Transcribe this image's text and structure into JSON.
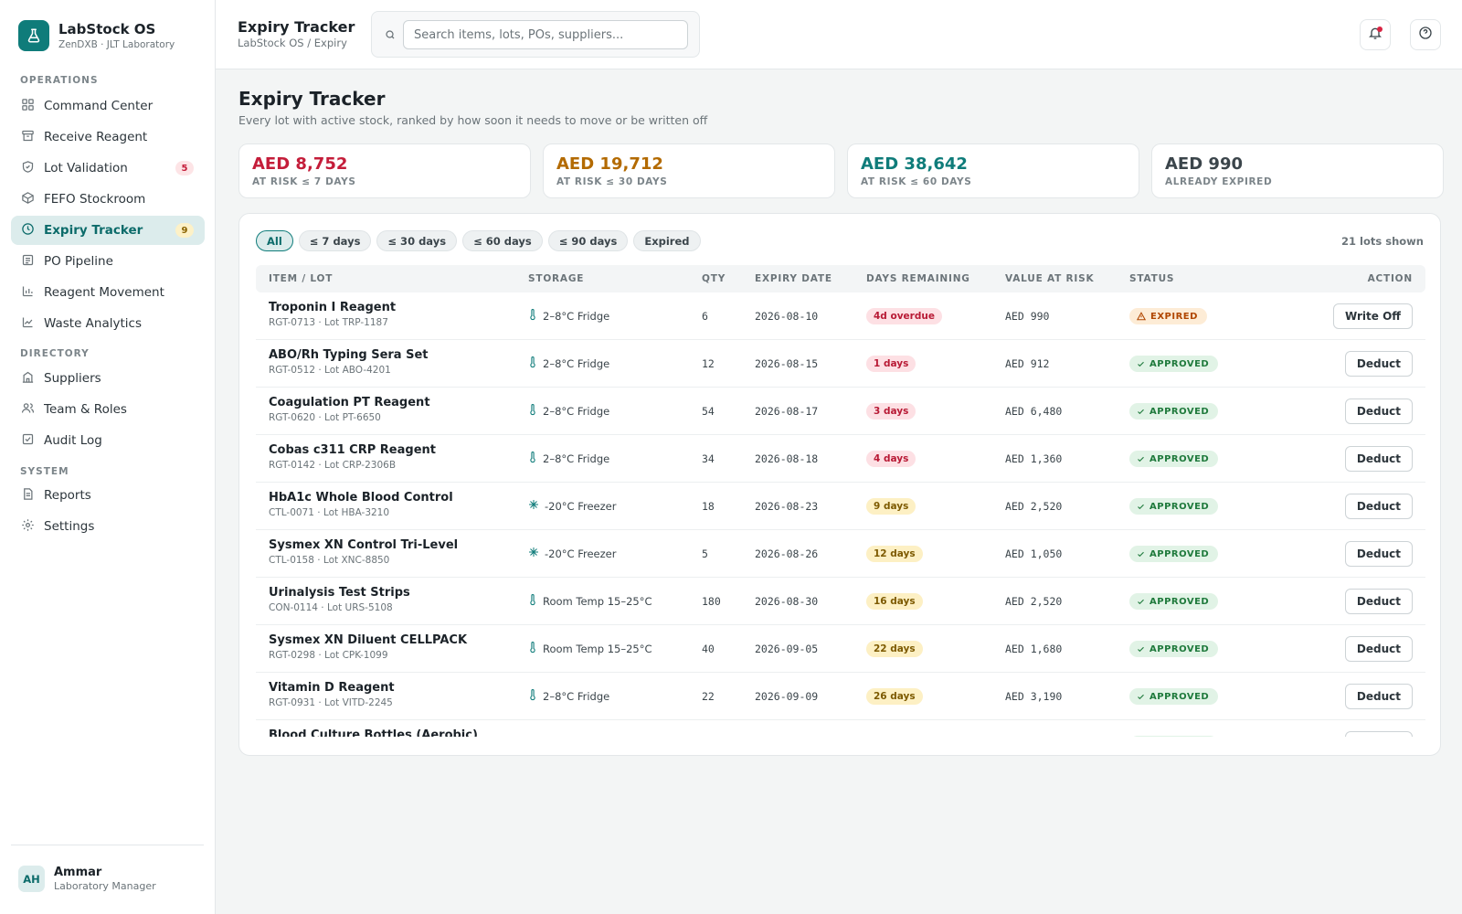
{
  "brand": {
    "title": "LabStock OS",
    "subtitle": "ZenDXB · JLT Laboratory",
    "logo_icon": "flask-icon",
    "accent": "#0f7c7a"
  },
  "sidebar": {
    "sections": [
      {
        "label": "OPERATIONS"
      },
      {
        "label": "DIRECTORY"
      },
      {
        "label": "SYSTEM"
      }
    ],
    "items": [
      {
        "label": "Command Center",
        "icon": "grid-icon"
      },
      {
        "label": "Receive Reagent",
        "icon": "inbox-icon"
      },
      {
        "label": "Lot Validation",
        "icon": "shield-icon",
        "badge": "5"
      },
      {
        "label": "FEFO Stockroom",
        "icon": "box-icon"
      },
      {
        "label": "Expiry Tracker",
        "icon": "clock-icon",
        "badge": "9",
        "active": true
      },
      {
        "label": "PO Pipeline",
        "icon": "clipboard-icon"
      },
      {
        "label": "Reagent Movement",
        "icon": "bar-chart-icon"
      },
      {
        "label": "Waste Analytics",
        "icon": "trend-icon"
      },
      {
        "label": "Suppliers",
        "icon": "building-icon"
      },
      {
        "label": "Team & Roles",
        "icon": "users-icon"
      },
      {
        "label": "Audit Log",
        "icon": "checklist-icon"
      },
      {
        "label": "Reports",
        "icon": "document-icon"
      },
      {
        "label": "Settings",
        "icon": "gear-icon"
      }
    ]
  },
  "user": {
    "initials": "AH",
    "name": "Ammar",
    "role": "Laboratory Manager"
  },
  "topbar": {
    "title": "Expiry Tracker",
    "breadcrumb": "LabStock OS / Expiry",
    "search_placeholder": "Search items, lots, POs, suppliers..."
  },
  "page": {
    "title": "Expiry Tracker",
    "subtitle": "Every lot with active stock, ranked by how soon it needs to move or be written off"
  },
  "kpis": [
    {
      "value": "AED 8,752",
      "label": "AT RISK ≤ 7 DAYS",
      "color": "#c41d3a"
    },
    {
      "value": "AED 19,712",
      "label": "AT RISK ≤ 30 DAYS",
      "color": "#b36a00"
    },
    {
      "value": "AED 38,642",
      "label": "AT RISK ≤ 60 DAYS",
      "color": "#0f7c7a"
    },
    {
      "value": "AED 990",
      "label": "ALREADY EXPIRED",
      "color": "#3b454b"
    }
  ],
  "filters": [
    "All",
    "≤ 7 days",
    "≤ 30 days",
    "≤ 60 days",
    "≤ 90 days",
    "Expired"
  ],
  "lots_shown": "21 lots shown",
  "table": {
    "headers": [
      "ITEM / LOT",
      "STORAGE",
      "QTY",
      "EXPIRY DATE",
      "DAYS REMAINING",
      "VALUE AT RISK",
      "STATUS",
      "ACTION"
    ],
    "rows": [
      {
        "name": "Troponin I Reagent",
        "meta": "RGT-0713 · Lot TRP-1187",
        "storage": "2–8°C Fridge",
        "storage_icon": "thermometer-icon",
        "qty": "6",
        "expiry": "2026-08-10",
        "days": "4d overdue",
        "days_tone": "red",
        "value": "AED 990",
        "status": "EXPIRED",
        "status_tone": "expired",
        "action": "Write Off"
      },
      {
        "name": "ABO/Rh Typing Sera Set",
        "meta": "RGT-0512 · Lot ABO-4201",
        "storage": "2–8°C Fridge",
        "storage_icon": "thermometer-icon",
        "qty": "12",
        "expiry": "2026-08-15",
        "days": "1 days",
        "days_tone": "red",
        "value": "AED 912",
        "status": "APPROVED",
        "status_tone": "approved",
        "action": "Deduct"
      },
      {
        "name": "Coagulation PT Reagent",
        "meta": "RGT-0620 · Lot PT-6650",
        "storage": "2–8°C Fridge",
        "storage_icon": "thermometer-icon",
        "qty": "54",
        "expiry": "2026-08-17",
        "days": "3 days",
        "days_tone": "red",
        "value": "AED 6,480",
        "status": "APPROVED",
        "status_tone": "approved",
        "action": "Deduct"
      },
      {
        "name": "Cobas c311 CRP Reagent",
        "meta": "RGT-0142 · Lot CRP-2306B",
        "storage": "2–8°C Fridge",
        "storage_icon": "thermometer-icon",
        "qty": "34",
        "expiry": "2026-08-18",
        "days": "4 days",
        "days_tone": "red",
        "value": "AED 1,360",
        "status": "APPROVED",
        "status_tone": "approved",
        "action": "Deduct"
      },
      {
        "name": "HbA1c Whole Blood Control",
        "meta": "CTL-0071 · Lot HBA-3210",
        "storage": "-20°C Freezer",
        "storage_icon": "snowflake-icon",
        "qty": "18",
        "expiry": "2026-08-23",
        "days": "9 days",
        "days_tone": "amber",
        "value": "AED 2,520",
        "status": "APPROVED",
        "status_tone": "approved",
        "action": "Deduct"
      },
      {
        "name": "Sysmex XN Control Tri-Level",
        "meta": "CTL-0158 · Lot XNC-8850",
        "storage": "-20°C Freezer",
        "storage_icon": "snowflake-icon",
        "qty": "5",
        "expiry": "2026-08-26",
        "days": "12 days",
        "days_tone": "amber",
        "value": "AED 1,050",
        "status": "APPROVED",
        "status_tone": "approved",
        "action": "Deduct"
      },
      {
        "name": "Urinalysis Test Strips",
        "meta": "CON-0114 · Lot URS-5108",
        "storage": "Room Temp 15–25°C",
        "storage_icon": "thermometer-icon",
        "qty": "180",
        "expiry": "2026-08-30",
        "days": "16 days",
        "days_tone": "amber",
        "value": "AED 2,520",
        "status": "APPROVED",
        "status_tone": "approved",
        "action": "Deduct"
      },
      {
        "name": "Sysmex XN Diluent CELLPACK",
        "meta": "RGT-0298 · Lot CPK-1099",
        "storage": "Room Temp 15–25°C",
        "storage_icon": "thermometer-icon",
        "qty": "40",
        "expiry": "2026-09-05",
        "days": "22 days",
        "days_tone": "amber",
        "value": "AED 1,680",
        "status": "APPROVED",
        "status_tone": "approved",
        "action": "Deduct"
      },
      {
        "name": "Vitamin D Reagent",
        "meta": "RGT-0931 · Lot VITD-2245",
        "storage": "2–8°C Fridge",
        "storage_icon": "thermometer-icon",
        "qty": "22",
        "expiry": "2026-09-09",
        "days": "26 days",
        "days_tone": "amber",
        "value": "AED 3,190",
        "status": "APPROVED",
        "status_tone": "approved",
        "action": "Deduct"
      },
      {
        "name": "Blood Culture Bottles (Aerobic)",
        "meta": "",
        "storage": "",
        "storage_icon": "thermometer-icon",
        "qty": "",
        "expiry": "",
        "days": "",
        "days_tone": "amber",
        "value": "",
        "status": "APPROVED",
        "status_tone": "approved",
        "action": "Deduct"
      }
    ]
  }
}
